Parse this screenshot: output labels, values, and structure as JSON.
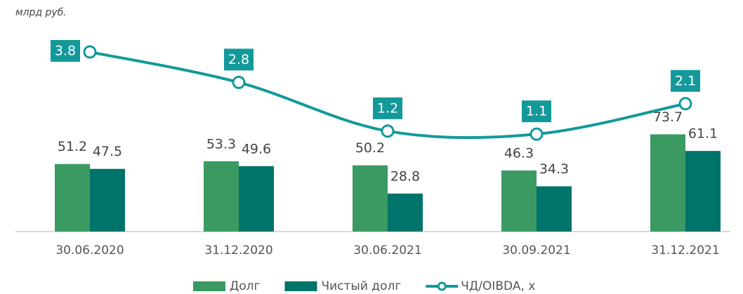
{
  "chart_data": {
    "type": "bar_line",
    "subtitle": "млрд руб.",
    "categories": [
      "30.06.2020",
      "31.12.2020",
      "30.06.2021",
      "30.09.2021",
      "31.12.2021"
    ],
    "series": [
      {
        "name": "Долг",
        "type": "bar",
        "color": "#3a9a62",
        "values": [
          51.2,
          53.3,
          50.2,
          46.3,
          73.7
        ]
      },
      {
        "name": "Чистый долг",
        "type": "bar",
        "color": "#00736a",
        "values": [
          47.5,
          49.6,
          28.8,
          34.3,
          61.1
        ]
      },
      {
        "name": "ЧД/OIBDA, х",
        "type": "line",
        "axis": "y2",
        "color": "#13999a",
        "values": [
          3.8,
          2.8,
          1.2,
          1.1,
          2.1
        ]
      }
    ],
    "ylim": [
      0,
      150
    ],
    "y2lim": [
      -2.1,
      4.4
    ],
    "legend": "bottom"
  }
}
